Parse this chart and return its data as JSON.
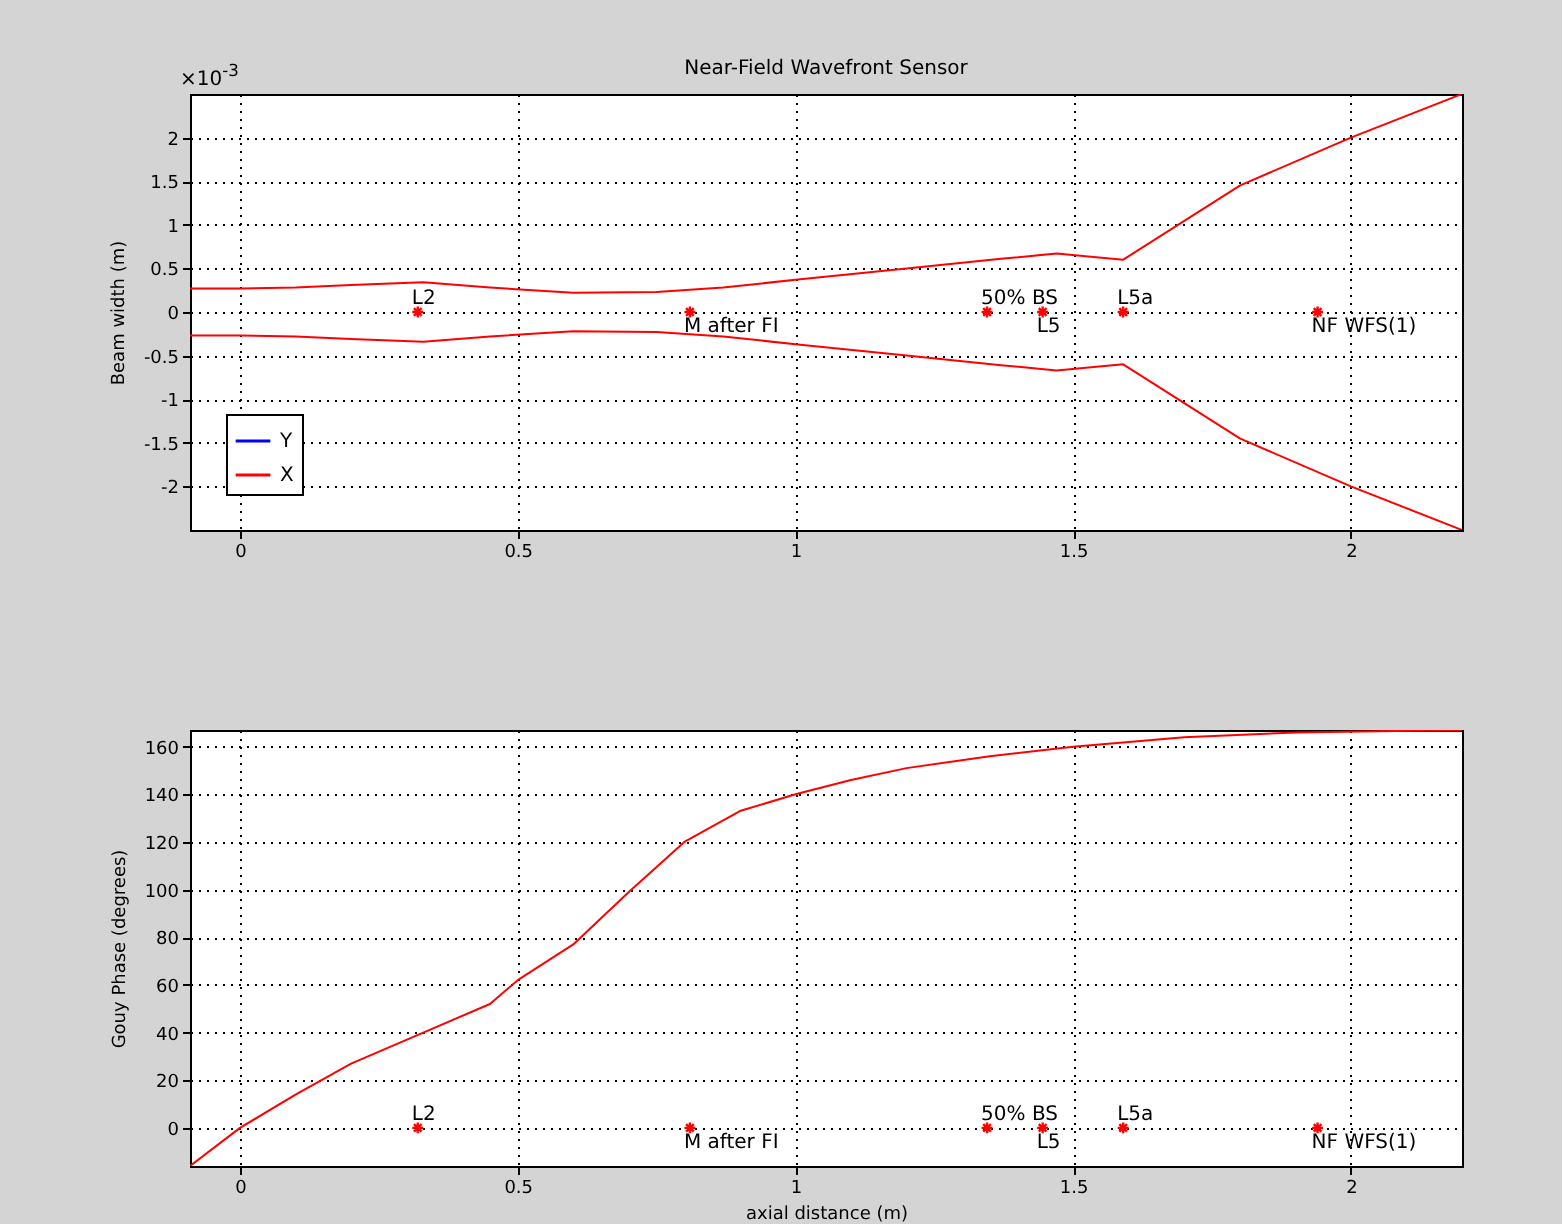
{
  "chart_data": [
    {
      "type": "line",
      "title": "Near-Field Wavefront Sensor",
      "ylabel": "Beam width (m)",
      "xlim": [
        -0.09,
        2.2
      ],
      "xticks": [
        0,
        0.5,
        1,
        1.5,
        2
      ],
      "ylim": [
        -2.5,
        2.5
      ],
      "yticks": [
        -2,
        -1.5,
        -1,
        -0.5,
        0,
        0.5,
        1,
        1.5,
        2
      ],
      "grid": true,
      "legend": "bottom left",
      "series": [
        {
          "name": "Y",
          "color": "#0000ff",
          "values": [
            null
          ]
        },
        {
          "name": "X",
          "color": "#ff0000",
          "x": [
            -0.09,
            0,
            0.1,
            0.2,
            0.33,
            0.45,
            0.6,
            0.75,
            0.87,
            1.0,
            1.2,
            1.37,
            1.47,
            1.59,
            1.8,
            2.0,
            2.2
          ],
          "values": [
            0.27,
            0.27,
            0.28,
            0.31,
            0.34,
            0.28,
            0.22,
            0.23,
            0.28,
            0.37,
            0.5,
            0.61,
            0.67,
            0.6,
            1.45,
            2.0,
            2.5
          ]
        },
        {
          "color": "#ff0000",
          "x": [
            -0.09,
            0,
            0.1,
            0.2,
            0.33,
            0.45,
            0.6,
            0.75,
            0.87,
            1.0,
            1.2,
            1.37,
            1.47,
            1.59,
            1.8,
            2.0,
            2.2
          ],
          "values": [
            -0.27,
            -0.27,
            -0.28,
            -0.31,
            -0.34,
            -0.28,
            -0.22,
            -0.23,
            -0.28,
            -0.37,
            -0.5,
            -0.61,
            -0.67,
            -0.6,
            -1.45,
            -2.0,
            -2.5
          ]
        },
        {
          "type": "scatter",
          "color": "#ff0000",
          "marker": "cross",
          "x": [
            0.32,
            0.81,
            1.345,
            1.445,
            1.59,
            1.94
          ],
          "values": [
            0,
            0,
            0,
            0,
            0,
            0
          ]
        }
      ],
      "annotations": [
        "×10$^{-3}$",
        {
          "text": "L2",
          "x": 0.32,
          "y": 0
        },
        {
          "text": "M after FI",
          "x": 0.81,
          "y": 0
        },
        {
          "text": "50% BS",
          "x": 1.345,
          "y": 0
        },
        {
          "text": "L5",
          "x": 1.445,
          "y": 0
        },
        {
          "text": "L5a",
          "x": 1.59,
          "y": 0
        },
        {
          "text": "NF WFS(1)",
          "x": 1.94,
          "y": 0
        }
      ]
    },
    {
      "type": "line",
      "xlabel": "axial distance (m)",
      "ylabel": "Gouy Phase (degrees)",
      "xlim": [
        -0.09,
        2.2
      ],
      "xticks": [
        0,
        0.5,
        1,
        1.5,
        2
      ],
      "ylim": [
        -16,
        167
      ],
      "yticks": [
        0,
        20,
        40,
        60,
        80,
        100,
        120,
        140,
        160
      ],
      "grid": true,
      "series": [
        {
          "color": "#ff0000",
          "x": [
            -0.09,
            0,
            0.1,
            0.2,
            0.33,
            0.45,
            0.5,
            0.6,
            0.7,
            0.8,
            0.9,
            1.0,
            1.1,
            1.2,
            1.35,
            1.5,
            1.7,
            1.9,
            2.2
          ],
          "values": [
            -16,
            0,
            14,
            27,
            40,
            52,
            62,
            77,
            99,
            120,
            133,
            140,
            146,
            151,
            156,
            160,
            164,
            166,
            167
          ]
        },
        {
          "type": "scatter",
          "color": "#ff0000",
          "marker": "cross",
          "x": [
            0.32,
            0.81,
            1.345,
            1.445,
            1.59,
            1.94
          ],
          "values": [
            0,
            0,
            0,
            0,
            0,
            0
          ]
        }
      ],
      "annotations": [
        {
          "text": "L2",
          "x": 0.32,
          "y": 0
        },
        {
          "text": "M after FI",
          "x": 0.81,
          "y": 0
        },
        {
          "text": "50% BS",
          "x": 1.345,
          "y": 0
        },
        {
          "text": "L5",
          "x": 1.445,
          "y": 0
        },
        {
          "text": "L5a",
          "x": 1.59,
          "y": 0
        },
        {
          "text": "NF WFS(1)",
          "x": 1.94,
          "y": 0
        }
      ]
    }
  ]
}
